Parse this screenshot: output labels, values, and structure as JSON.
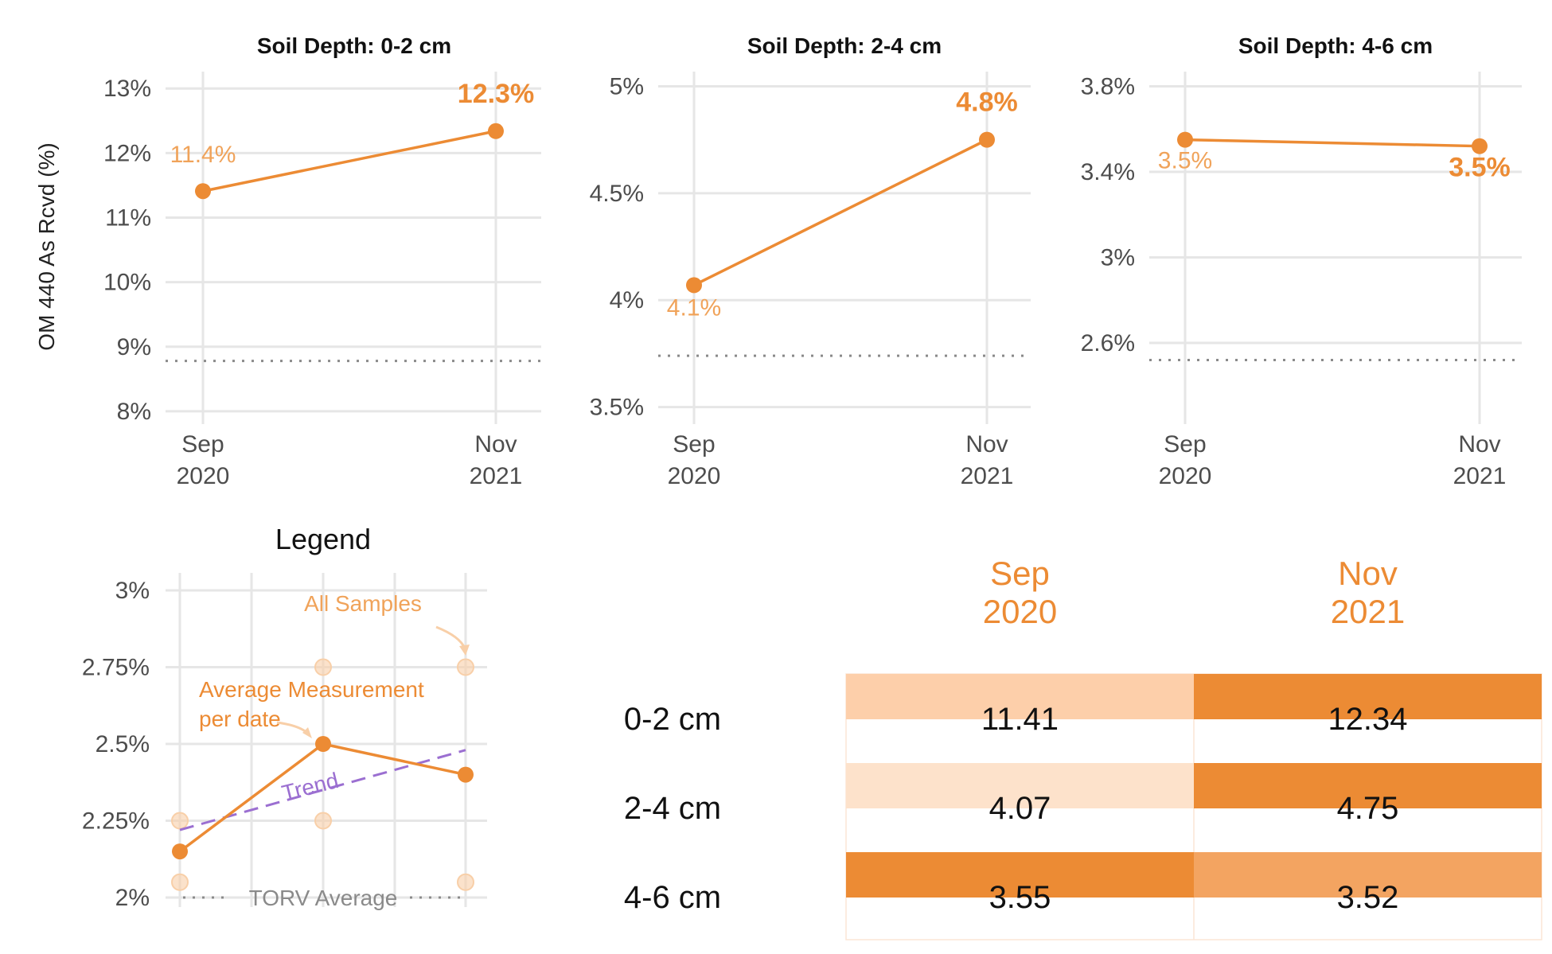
{
  "colors": {
    "accent": "#EC8B34",
    "label_light": "#F0A35A",
    "trend": "#9B6FD1",
    "grid": "#E6E6E6",
    "torv": "#8A8A8A",
    "axis_text": "#4D4D4D",
    "sample_point": "#F8CFA8"
  },
  "y_axis_title": "OM 440 As Rcvd (%)",
  "chart_data": [
    {
      "type": "line",
      "title": "Soil Depth: 0-2 cm",
      "x": [
        "Sep 2020",
        "Nov 2021"
      ],
      "x_tick_lines": [
        [
          "Sep",
          "2020"
        ],
        [
          "Nov",
          "2021"
        ]
      ],
      "values": [
        11.41,
        12.34
      ],
      "value_labels": [
        "11.4%",
        "12.3%"
      ],
      "ylim": [
        7.9,
        13.2
      ],
      "yticks": [
        8,
        9,
        10,
        11,
        12,
        13
      ],
      "ytick_labels": [
        "8%",
        "9%",
        "10%",
        "11%",
        "12%",
        "13%"
      ],
      "torv_average": 8.78,
      "grid": true
    },
    {
      "type": "line",
      "title": "Soil Depth: 2-4 cm",
      "x": [
        "Sep 2020",
        "Nov 2021"
      ],
      "x_tick_lines": [
        [
          "Sep",
          "2020"
        ],
        [
          "Nov",
          "2021"
        ]
      ],
      "values": [
        4.07,
        4.75
      ],
      "value_labels": [
        "4.1%",
        "4.8%"
      ],
      "ylim": [
        3.45,
        5.05
      ],
      "yticks": [
        3.5,
        4,
        4.5,
        5
      ],
      "ytick_labels": [
        "3.5%",
        "4%",
        "4.5%",
        "5%"
      ],
      "torv_average": 3.74,
      "grid": true
    },
    {
      "type": "line",
      "title": "Soil Depth: 4-6 cm",
      "x": [
        "Sep 2020",
        "Nov 2021"
      ],
      "x_tick_lines": [
        [
          "Sep",
          "2020"
        ],
        [
          "Nov",
          "2021"
        ]
      ],
      "values": [
        3.55,
        3.52
      ],
      "value_labels": [
        "3.5%",
        "3.5%"
      ],
      "ylim": [
        2.25,
        3.85
      ],
      "yticks": [
        2.6,
        3.0,
        3.4,
        3.8
      ],
      "ytick_labels": [
        "2.6%",
        "3%",
        "3.4%",
        "3.8%"
      ],
      "torv_average": 2.52,
      "grid": true
    },
    {
      "type": "line",
      "title": "Legend",
      "x": [
        1,
        2,
        3
      ],
      "values": [
        2.15,
        2.5,
        2.4
      ],
      "samples": [
        [
          1,
          2.05
        ],
        [
          1,
          2.25
        ],
        [
          2,
          2.25
        ],
        [
          2,
          2.75
        ],
        [
          3,
          2.05
        ],
        [
          3,
          2.75
        ]
      ],
      "trend": [
        [
          1,
          2.22
        ],
        [
          3,
          2.48
        ]
      ],
      "torv_average": 2.0,
      "ylim": [
        1.98,
        3.1
      ],
      "yticks": [
        2,
        2.25,
        2.5,
        2.75,
        3
      ],
      "ytick_labels": [
        "2%",
        "2.25%",
        "2.5%",
        "2.75%",
        "3%"
      ],
      "annotations": {
        "all_samples": "All Samples",
        "average_line1": "Average Measurement",
        "average_line2": "per date",
        "trend": "Trend",
        "torv": "TORV Average"
      },
      "grid": true
    },
    {
      "type": "table",
      "columns": [
        [
          "Sep",
          "2020"
        ],
        [
          "Nov",
          "2021"
        ]
      ],
      "rows": [
        "0-2 cm",
        "2-4 cm",
        "4-6 cm"
      ],
      "cells": [
        [
          "11.41",
          "12.34"
        ],
        [
          "4.07",
          "4.75"
        ],
        [
          "3.55",
          "3.52"
        ]
      ],
      "cell_colors": [
        [
          "#FDCFAA",
          "#EC8B34"
        ],
        [
          "#FDE2CB",
          "#EC8B34"
        ],
        [
          "#EC8B34",
          "#F3A461"
        ]
      ]
    }
  ]
}
